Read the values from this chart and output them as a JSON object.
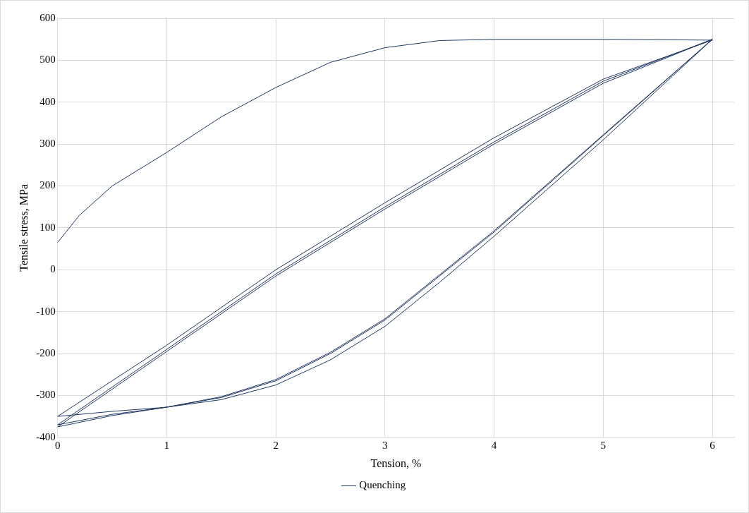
{
  "chart_data": {
    "type": "line",
    "xlabel": "Tension, %",
    "ylabel": "Tensile stress, MPa",
    "xlim": [
      0,
      6.2
    ],
    "xticks": [
      0,
      1,
      2,
      3,
      4,
      5,
      6
    ],
    "ylim": [
      -400,
      600
    ],
    "yticks": [
      -400,
      -300,
      -200,
      -100,
      0,
      100,
      200,
      300,
      400,
      500,
      600
    ],
    "grid": true,
    "legend": "bottom",
    "marker": "none",
    "line_style": "solid",
    "series": [
      {
        "name": "Quenching",
        "color": "#1f3864",
        "x": [
          0,
          0.2,
          0.5,
          1,
          1.5,
          2,
          2.5,
          3,
          3.5,
          4,
          5,
          6,
          5,
          4,
          3,
          2,
          1,
          0,
          0.5,
          1,
          1.5,
          2,
          2.5,
          3,
          3.5,
          4,
          5,
          6,
          5,
          4,
          3,
          2,
          1,
          0,
          0.5,
          1,
          1.5,
          2,
          2.5,
          3,
          3.5,
          4,
          5,
          6,
          5,
          4,
          3,
          2,
          1,
          0,
          0.5,
          1,
          1.5,
          2,
          2.5,
          3,
          3.5,
          4,
          5,
          6
        ],
        "values": [
          65,
          130,
          200,
          280,
          365,
          435,
          495,
          530,
          547,
          550,
          550,
          548,
          455,
          315,
          160,
          0,
          -180,
          -350,
          -338,
          -328,
          -310,
          -275,
          -215,
          -135,
          -30,
          80,
          310,
          550,
          450,
          305,
          150,
          -10,
          -190,
          -370,
          -345,
          -328,
          -305,
          -265,
          -200,
          -120,
          -15,
          90,
          320,
          550,
          445,
          300,
          145,
          -15,
          -195,
          -375,
          -348,
          -328,
          -303,
          -262,
          -197,
          -117,
          -12,
          93,
          322,
          550
        ]
      }
    ]
  }
}
